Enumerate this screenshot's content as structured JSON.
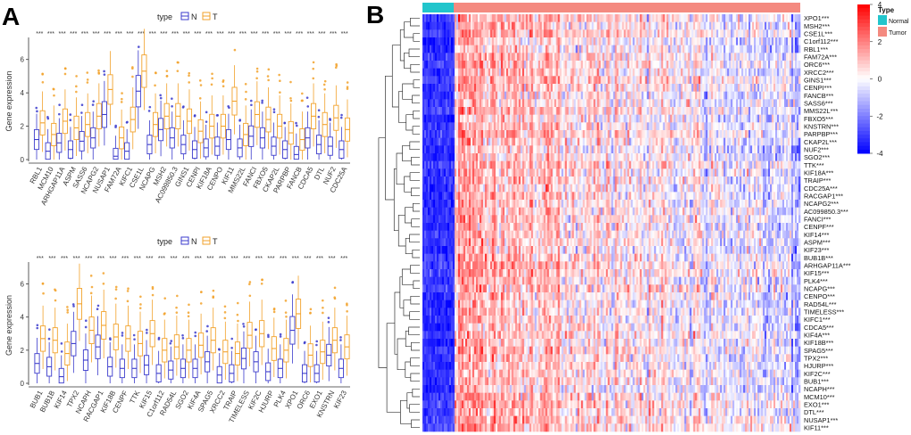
{
  "panels": {
    "a_letter": "A",
    "b_letter": "B"
  },
  "colors": {
    "normal_box": "#3b3bcc",
    "tumor_box": "#f2a22b",
    "heat_high": "#ff0000",
    "heat_mid": "#ffffff",
    "heat_low": "#0000ff",
    "anno_normal": "#22c5cc",
    "anno_tumor": "#f48a80"
  },
  "chart_data": [
    {
      "type": "box",
      "panel": "A-top",
      "legend_title": "type",
      "legend": [
        "N",
        "T"
      ],
      "ylabel": "Gene expression",
      "ylim": [
        0,
        7
      ],
      "yticks": [
        0,
        2,
        4,
        6
      ],
      "sig": "***",
      "categories": [
        "RBL1",
        "MCM10",
        "ARHGAP11A",
        "ASPM",
        "SASS6",
        "NCAPG2",
        "NUSAP1",
        "FAM72A",
        "KIFC1",
        "CSE1L",
        "NCAPG",
        "MSH2",
        "AC099850.3",
        "GINS1",
        "CENPI",
        "KIF18A",
        "CENPO",
        "KIF11",
        "MMS22L",
        "FANCI",
        "FBXO5",
        "CKAP2L",
        "PARPBP",
        "FANCB",
        "CDCA5",
        "DTL",
        "NUF2",
        "CDC25A"
      ],
      "medians_N": [
        1.2,
        0.5,
        1.0,
        0.6,
        1.1,
        1.3,
        2.7,
        0.2,
        0.5,
        4.1,
        0.9,
        1.8,
        1.3,
        0.9,
        0.6,
        0.7,
        0.8,
        1.2,
        0.7,
        1.4,
        1.3,
        0.8,
        0.6,
        0.3,
        1.3,
        0.9,
        0.8,
        0.6
      ],
      "medians_T": [
        2.2,
        1.5,
        2.3,
        1.9,
        2.1,
        2.6,
        4.2,
        1.3,
        2.4,
        5.3,
        2.1,
        2.6,
        2.6,
        2.3,
        1.7,
        2.0,
        2.0,
        3.5,
        1.5,
        2.7,
        2.4,
        2.0,
        1.6,
        1.2,
        2.6,
        2.1,
        2.5,
        1.8
      ]
    },
    {
      "type": "box",
      "panel": "A-bottom",
      "legend_title": "type",
      "legend": [
        "N",
        "T"
      ],
      "ylabel": "Gene expression",
      "ylim": [
        0,
        7
      ],
      "yticks": [
        0,
        2,
        4,
        6
      ],
      "sig": "***",
      "categories": [
        "BUB1",
        "BUB1B",
        "KIF14",
        "TPX2",
        "NCAPH",
        "RACGAP1",
        "KIF18B",
        "CENPF",
        "TTK",
        "KIF15",
        "C1orf112",
        "RAD54L",
        "SGO2",
        "KIF4A",
        "SPAG5",
        "XRCC2",
        "TRAIP",
        "TIMELESS",
        "KIF2C",
        "HJURP",
        "PLK4",
        "XPO1",
        "ORC6",
        "EXO1",
        "KNSTRN",
        "KIF23"
      ],
      "medians_N": [
        1.2,
        1.0,
        0.4,
        2.4,
        1.4,
        2.2,
        1.0,
        0.9,
        0.9,
        1.1,
        0.6,
        0.8,
        0.9,
        0.9,
        1.3,
        0.5,
        0.6,
        1.5,
        1.3,
        0.7,
        0.9,
        3.2,
        0.6,
        0.6,
        1.7,
        0.9
      ],
      "medians_T": [
        2.7,
        2.6,
        1.8,
        4.8,
        3.2,
        3.5,
        2.8,
        2.7,
        2.4,
        3.0,
        2.0,
        2.2,
        2.0,
        2.3,
        2.6,
        1.9,
        1.8,
        2.9,
        3.0,
        2.1,
        2.0,
        4.2,
        1.7,
        1.9,
        2.6,
        2.2
      ]
    },
    {
      "type": "heatmap",
      "panel": "B",
      "genes": [
        "XPO1***",
        "MSH2***",
        "CSE1L***",
        "C1orf112***",
        "RBL1***",
        "FAM72A***",
        "ORC6***",
        "XRCC2***",
        "GINS1***",
        "CENPI***",
        "FANCB***",
        "SASS6***",
        "MMS22L***",
        "FBXO5***",
        "KNSTRN***",
        "PARPBP***",
        "CKAP2L***",
        "NUF2***",
        "SGO2***",
        "TTK***",
        "KIF18A***",
        "TRAIP***",
        "CDC25A***",
        "RACGAP1***",
        "NCAPG2***",
        "AC099850.3***",
        "FANCI***",
        "CENPF***",
        "KIF14***",
        "ASPM***",
        "KIF23***",
        "BUB1B***",
        "ARHGAP11A***",
        "KIF15***",
        "PLK4***",
        "NCAPG***",
        "CENPO***",
        "RAD54L***",
        "TIMELESS***",
        "KIFC1***",
        "CDCA5***",
        "KIF4A***",
        "KIF18B***",
        "SPAG5***",
        "TPX2***",
        "HJURP***",
        "KIF2C***",
        "BUB1***",
        "NCAPH***",
        "MCM10***",
        "EXO1***",
        "DTL***",
        "NUSAP1***",
        "KIF11***"
      ],
      "annotation_title": "Type",
      "groups": [
        "Normal",
        "Tumor"
      ],
      "color_scale": {
        "max": 4,
        "min": -4,
        "ticks": [
          4,
          2,
          0,
          -2,
          -4
        ]
      }
    }
  ]
}
